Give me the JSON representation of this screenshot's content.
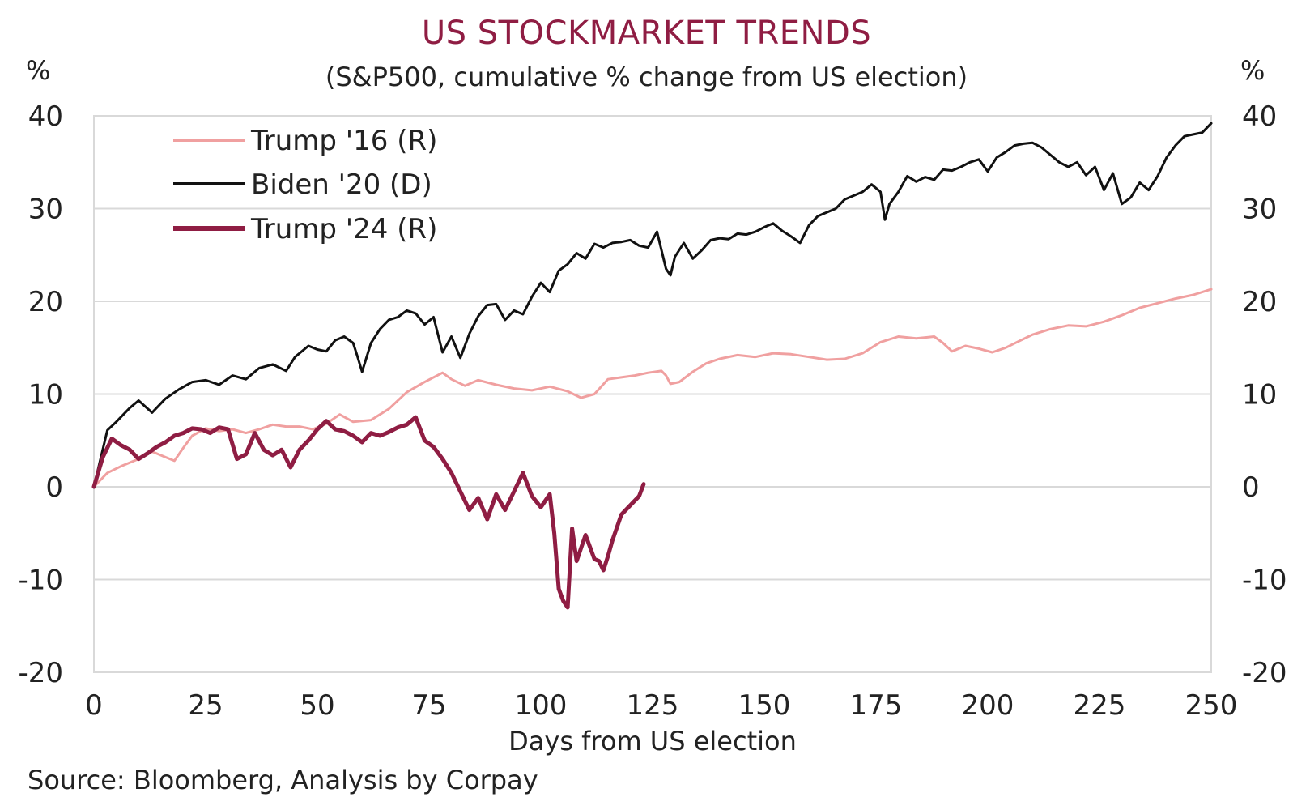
{
  "title": "US STOCKMARKET TRENDS",
  "subtitle": "(S&P500, cumulative % change from US election)",
  "unit_left": "%",
  "unit_right": "%",
  "source": "Source: Bloomberg, Analysis by Corpay",
  "colors": {
    "title": "#8f1d43",
    "trump16": "#f0a0a0",
    "biden20": "#111111",
    "trump24": "#8f1d43",
    "grid": "#d9d9d9"
  },
  "chart_data": {
    "type": "line",
    "xlabel": "Days from US election",
    "ylabel": "%",
    "xlim": [
      0,
      250
    ],
    "ylim": [
      -20,
      40
    ],
    "x_ticks": [
      "0",
      "25",
      "50",
      "75",
      "100",
      "125",
      "150",
      "175",
      "200",
      "225",
      "250"
    ],
    "y_ticks": [
      "40",
      "30",
      "20",
      "10",
      "0",
      "-10",
      "-20"
    ],
    "grid": "horizontal",
    "legend_position": "top-left",
    "series": [
      {
        "name": "Trump '16 (R)",
        "color": "#f0a0a0",
        "x": [
          0,
          3,
          6,
          10,
          13,
          16,
          18,
          20,
          22,
          25,
          28,
          31,
          34,
          37,
          40,
          43,
          46,
          49,
          52,
          55,
          58,
          62,
          66,
          70,
          74,
          78,
          80,
          83,
          86,
          90,
          94,
          98,
          102,
          106,
          109,
          112,
          115,
          118,
          121,
          124,
          127,
          128,
          129,
          131,
          134,
          137,
          140,
          144,
          148,
          152,
          156,
          160,
          164,
          168,
          172,
          176,
          180,
          184,
          188,
          190,
          192,
          195,
          198,
          201,
          204,
          207,
          210,
          214,
          218,
          222,
          226,
          230,
          234,
          238,
          242,
          246,
          250
        ],
        "values": [
          0,
          1.5,
          2.2,
          3.0,
          3.8,
          3.2,
          2.8,
          4.2,
          5.5,
          6.3,
          6.0,
          6.2,
          5.8,
          6.2,
          6.7,
          6.5,
          6.5,
          6.2,
          6.8,
          7.8,
          7.0,
          7.2,
          8.4,
          10.2,
          11.3,
          12.3,
          11.6,
          10.9,
          11.5,
          11.0,
          10.6,
          10.4,
          10.8,
          10.3,
          9.6,
          10.0,
          11.6,
          11.8,
          12.0,
          12.3,
          12.5,
          12.0,
          11.1,
          11.3,
          12.4,
          13.3,
          13.8,
          14.2,
          14.0,
          14.4,
          14.3,
          14.0,
          13.7,
          13.8,
          14.4,
          15.6,
          16.2,
          16.0,
          16.2,
          15.5,
          14.6,
          15.2,
          14.9,
          14.5,
          15.0,
          15.7,
          16.4,
          17.0,
          17.4,
          17.3,
          17.8,
          18.5,
          19.3,
          19.8,
          20.3,
          20.7,
          21.3
        ]
      },
      {
        "name": "Biden '20 (D)",
        "color": "#111111",
        "x": [
          0,
          3,
          5,
          8,
          10,
          13,
          16,
          19,
          22,
          25,
          28,
          31,
          34,
          37,
          40,
          43,
          45,
          48,
          50,
          52,
          54,
          56,
          58,
          59,
          60,
          62,
          64,
          66,
          68,
          70,
          72,
          74,
          76,
          78,
          80,
          82,
          84,
          86,
          88,
          90,
          92,
          94,
          96,
          98,
          100,
          102,
          104,
          106,
          108,
          110,
          112,
          114,
          116,
          118,
          120,
          122,
          124,
          126,
          128,
          129,
          130,
          132,
          134,
          136,
          138,
          140,
          142,
          144,
          146,
          148,
          150,
          152,
          154,
          156,
          158,
          160,
          162,
          164,
          166,
          168,
          170,
          172,
          174,
          176,
          177,
          178,
          180,
          182,
          184,
          186,
          188,
          190,
          192,
          194,
          196,
          198,
          200,
          202,
          204,
          206,
          208,
          210,
          212,
          214,
          216,
          218,
          220,
          222,
          224,
          226,
          228,
          230,
          232,
          234,
          236,
          238,
          240,
          242,
          244,
          246,
          248,
          250
        ],
        "values": [
          0,
          6.1,
          7.0,
          8.5,
          9.3,
          8.0,
          9.5,
          10.5,
          11.3,
          11.5,
          11.0,
          12.0,
          11.6,
          12.8,
          13.2,
          12.5,
          14.0,
          15.2,
          14.8,
          14.6,
          15.8,
          16.2,
          15.5,
          14.0,
          12.4,
          15.5,
          17.0,
          18.0,
          18.3,
          19.0,
          18.7,
          17.5,
          18.3,
          14.5,
          16.2,
          13.9,
          16.5,
          18.4,
          19.6,
          19.7,
          18.0,
          19.0,
          18.6,
          20.5,
          22.0,
          21.0,
          23.3,
          24.0,
          25.2,
          24.6,
          26.2,
          25.8,
          26.3,
          26.4,
          26.6,
          26.0,
          25.8,
          27.5,
          23.5,
          22.8,
          24.8,
          26.3,
          24.6,
          25.5,
          26.6,
          26.8,
          26.7,
          27.3,
          27.2,
          27.5,
          28.0,
          28.4,
          27.6,
          27.0,
          26.3,
          28.2,
          29.2,
          29.6,
          30.0,
          31.0,
          31.4,
          31.8,
          32.6,
          31.8,
          28.8,
          30.5,
          31.8,
          33.5,
          32.9,
          33.4,
          33.1,
          34.2,
          34.1,
          34.5,
          35.0,
          35.3,
          34.0,
          35.5,
          36.1,
          36.8,
          37.0,
          37.1,
          36.6,
          35.8,
          35.0,
          34.5,
          35.0,
          33.6,
          34.5,
          32.0,
          33.8,
          30.5,
          31.2,
          32.8,
          32.0,
          33.5,
          35.5,
          36.8,
          37.8,
          38.0,
          38.2,
          39.2
        ]
      },
      {
        "name": "Trump '24 (R)",
        "color": "#8f1d43",
        "x": [
          0,
          2,
          4,
          6,
          8,
          10,
          12,
          14,
          16,
          18,
          20,
          22,
          24,
          26,
          28,
          30,
          32,
          34,
          36,
          38,
          40,
          42,
          44,
          46,
          48,
          50,
          52,
          54,
          56,
          58,
          60,
          62,
          64,
          66,
          68,
          70,
          72,
          74,
          76,
          78,
          80,
          82,
          84,
          86,
          88,
          90,
          92,
          94,
          96,
          98,
          100,
          102,
          103,
          104,
          105,
          106,
          107,
          108,
          110,
          111,
          112,
          113,
          114,
          115,
          116,
          118,
          120,
          122,
          123
        ],
        "values": [
          0,
          3.2,
          5.2,
          4.5,
          4.0,
          3.0,
          3.6,
          4.3,
          4.8,
          5.5,
          5.8,
          6.3,
          6.2,
          5.8,
          6.4,
          6.2,
          3.0,
          3.5,
          5.8,
          4.0,
          3.4,
          4.0,
          2.1,
          4.0,
          5.0,
          6.2,
          7.1,
          6.2,
          6.0,
          5.5,
          4.8,
          5.8,
          5.5,
          5.9,
          6.4,
          6.7,
          7.5,
          5.0,
          4.3,
          3.0,
          1.5,
          -0.5,
          -2.5,
          -1.2,
          -3.5,
          -0.8,
          -2.5,
          -0.5,
          1.5,
          -1.0,
          -2.2,
          -0.8,
          -5.0,
          -11.0,
          -12.3,
          -13.0,
          -4.5,
          -8.0,
          -5.2,
          -6.5,
          -7.8,
          -8.0,
          -9.0,
          -7.5,
          -5.8,
          -3.0,
          -2.0,
          -1.0,
          0.3
        ]
      }
    ]
  }
}
